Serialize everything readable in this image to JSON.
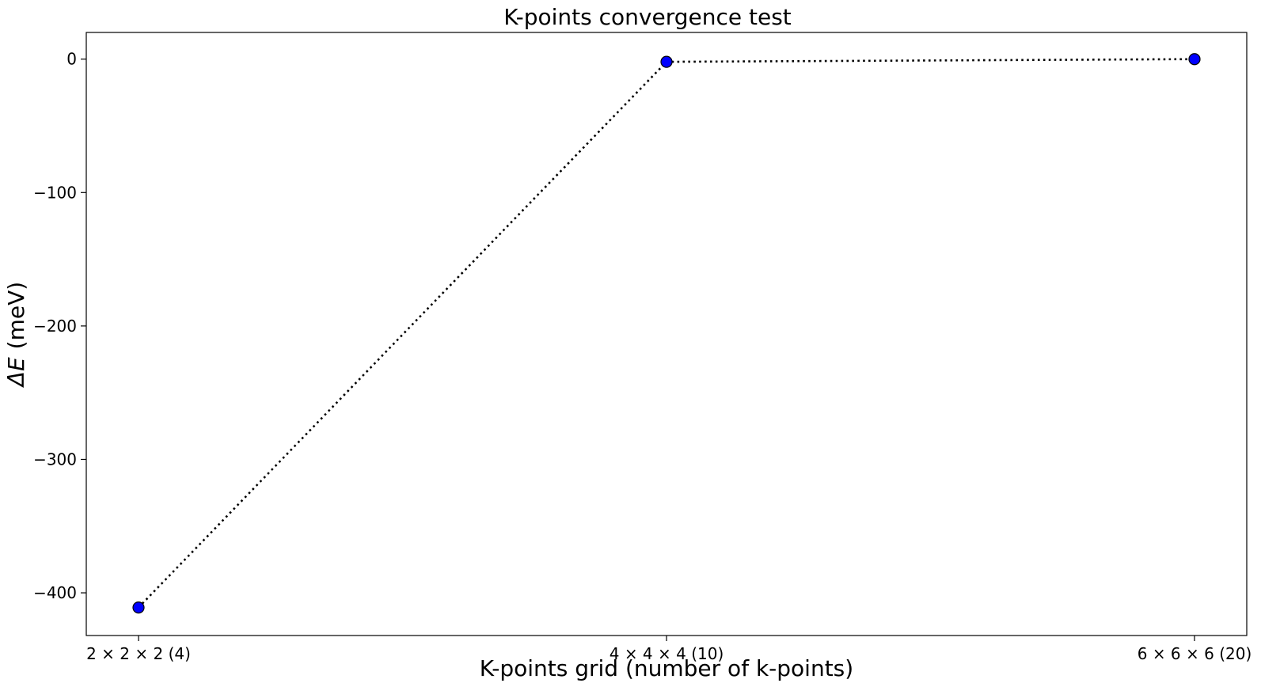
{
  "chart_data": {
    "type": "line",
    "title": "K-points convergence test",
    "xlabel": "K-points grid (number of k-points)",
    "ylabel_symbol": "ΔE",
    "ylabel_unit": "(meV)",
    "categories": [
      "2 × 2 × 2 (4)",
      "4 × 4 × 4 (10)",
      "6 × 6 × 6 (20)"
    ],
    "series": [
      {
        "values": [
          -411,
          -2,
          0
        ],
        "line_color": "#000000",
        "line_style": "dotted",
        "marker": "circle",
        "marker_color": "#0000ff",
        "marker_edge_color": "#000000"
      }
    ],
    "yticks": [
      0,
      -100,
      -200,
      -300,
      -400
    ],
    "ytick_labels": [
      "0",
      "−100",
      "−200",
      "−300",
      "−400"
    ],
    "ylim": [
      -432,
      20
    ],
    "grid": false,
    "legend": "none"
  }
}
